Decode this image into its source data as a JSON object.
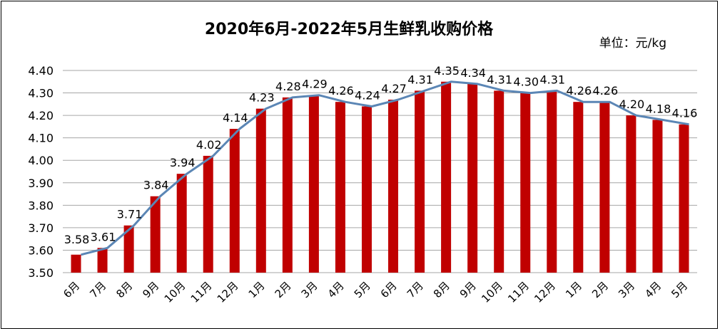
{
  "chart_data": {
    "type": "bar",
    "title": "2020年6月-2022年5月生鲜乳收购价格",
    "unit": "单位：元/kg",
    "categories": [
      "6月",
      "7月",
      "8月",
      "9月",
      "10月",
      "11月",
      "12月",
      "1月",
      "2月",
      "3月",
      "4月",
      "5月",
      "6月",
      "7月",
      "8月",
      "9月",
      "10月",
      "11月",
      "12月",
      "1月",
      "2月",
      "3月",
      "4月",
      "5月"
    ],
    "values": [
      3.58,
      3.61,
      3.71,
      3.84,
      3.94,
      4.02,
      4.14,
      4.23,
      4.28,
      4.29,
      4.26,
      4.24,
      4.27,
      4.31,
      4.35,
      4.34,
      4.31,
      4.3,
      4.31,
      4.26,
      4.26,
      4.2,
      4.18,
      4.16
    ],
    "value_labels": [
      "3.58",
      "3.61",
      "3.71",
      "3.84",
      "3.94",
      "4.02",
      "4.14",
      "4.23",
      "4.28",
      "4.29",
      "4.26",
      "4.24",
      "4.27",
      "4.31",
      "4.35",
      "4.34",
      "4.31",
      "4.30",
      "4.31",
      "4.26",
      "4.26",
      "4.20",
      "4.18",
      "4.16"
    ],
    "yticks": [
      "3.50",
      "3.60",
      "3.70",
      "3.80",
      "3.90",
      "4.00",
      "4.10",
      "4.20",
      "4.30",
      "4.40"
    ],
    "ylim": [
      3.5,
      4.4
    ],
    "overlay_line": true,
    "grid": true,
    "bar_color": "#c00000",
    "line_color": "#5b86b5"
  }
}
